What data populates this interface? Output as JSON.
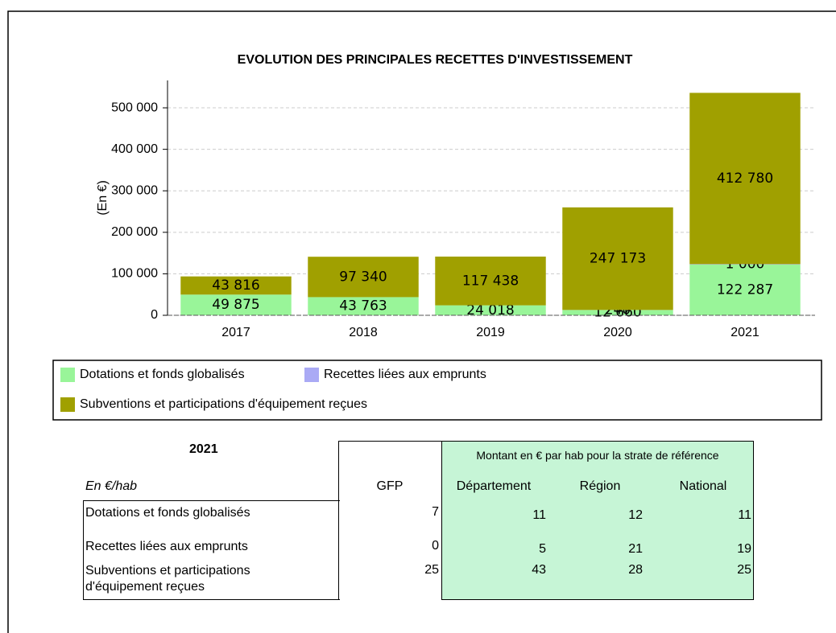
{
  "chart_data": {
    "type": "bar",
    "stacked": true,
    "title": "EVOLUTION DES PRINCIPALES RECETTES D'INVESTISSEMENT",
    "ylabel": "(En €)",
    "categories": [
      "2017",
      "2018",
      "2019",
      "2020",
      "2021"
    ],
    "series": [
      {
        "name": "Dotations et fonds globalisés",
        "color": "#99f599",
        "values": [
          49875,
          43763,
          24018,
          12660,
          122287
        ],
        "value_labels": [
          "49 875",
          "43 763",
          "24 018",
          "12 660",
          "122 287"
        ]
      },
      {
        "name": "Recettes liées aux emprunts",
        "color": "#aaaaf5",
        "values": [
          null,
          null,
          null,
          240,
          1000
        ],
        "value_labels": [
          null,
          null,
          null,
          "240",
          "1 000"
        ]
      },
      {
        "name": "Subventions et participations d'équipement reçues",
        "color": "#a0a000",
        "values": [
          43816,
          97340,
          117438,
          247173,
          412780
        ],
        "value_labels": [
          "43 816",
          "97 340",
          "117 438",
          "247 173",
          "412 780"
        ]
      }
    ],
    "ylim": [
      0,
      566000
    ],
    "yticks": [
      0,
      {
        "value": 100000,
        "label": "100 000"
      },
      {
        "value": 200000,
        "label": "200 000"
      },
      {
        "value": 300000,
        "label": "300 000"
      },
      {
        "value": 400000,
        "label": "400 000"
      },
      {
        "value": 500000,
        "label": "500 000"
      }
    ],
    "grid": true
  },
  "table": {
    "year": "2021",
    "unit": "En €/hab",
    "group_header": "Montant en € par hab pour la strate de référence",
    "columns": [
      "GFP",
      "Département",
      "Région",
      "National"
    ],
    "rows": [
      {
        "label": "Dotations et fonds globalisés",
        "values": [
          7,
          11,
          12,
          11
        ]
      },
      {
        "label": "Recettes liées aux emprunts",
        "values": [
          0,
          5,
          21,
          19
        ]
      },
      {
        "label": "Subventions et participations d'équipement reçues",
        "values": [
          25,
          43,
          28,
          25
        ]
      }
    ]
  }
}
